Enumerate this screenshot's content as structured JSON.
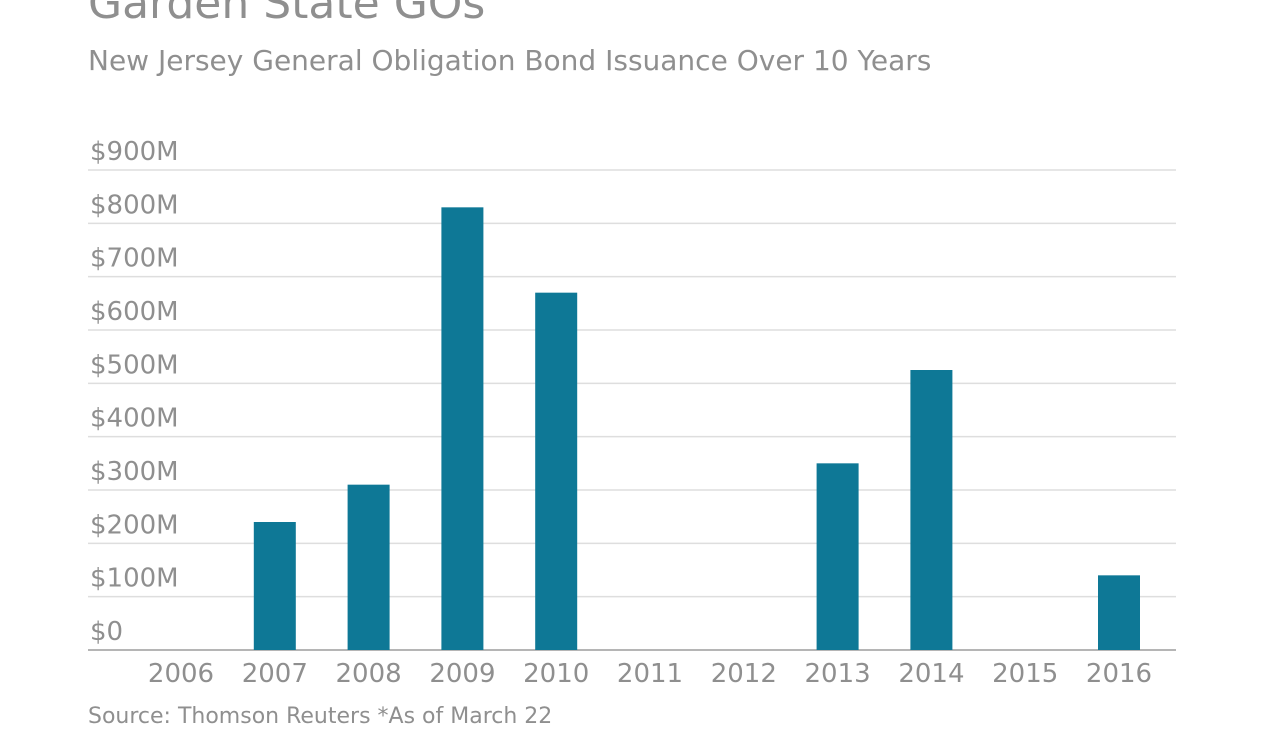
{
  "chart_data": {
    "type": "bar",
    "title": "Garden State GOs",
    "subtitle": "New Jersey General Obligation Bond Issuance Over 10 Years",
    "categories": [
      "2006",
      "2007",
      "2008",
      "2009",
      "2010",
      "2011",
      "2012",
      "2013",
      "2014",
      "2015",
      "2016"
    ],
    "values": [
      0,
      240,
      310,
      830,
      670,
      0,
      0,
      350,
      525,
      0,
      140
    ],
    "value_unit": "$M",
    "y_ticks": [
      "$0",
      "$100M",
      "$200M",
      "$300M",
      "$400M",
      "$500M",
      "$600M",
      "$700M",
      "$800M",
      "$900M"
    ],
    "ylim": [
      0,
      900
    ],
    "xlabel": "",
    "ylabel": "",
    "grid": true,
    "bar_color": "#0e7896",
    "source": "Source: Thomson Reuters *As of March 22"
  }
}
